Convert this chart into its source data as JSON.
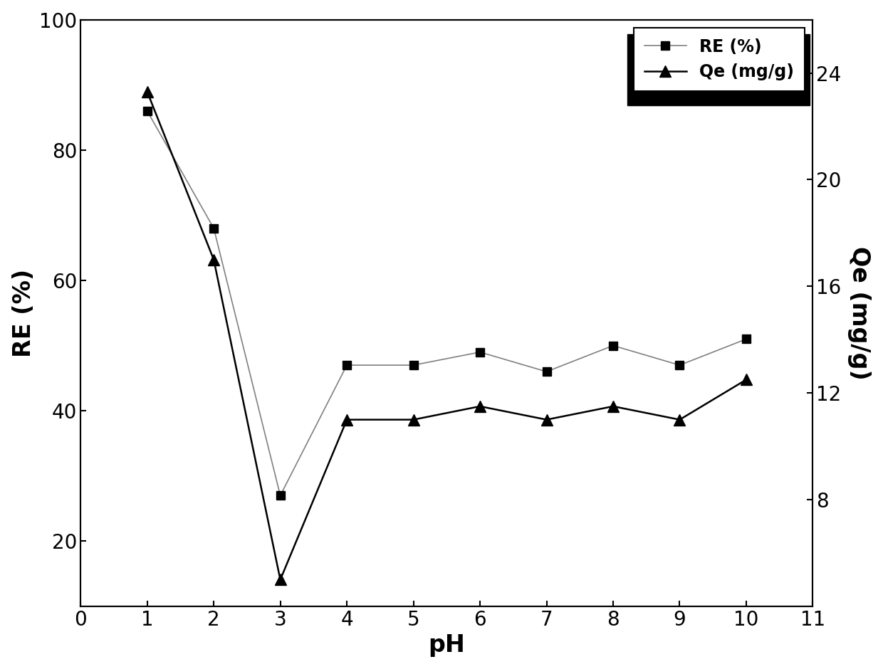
{
  "ph": [
    1,
    2,
    3,
    4,
    5,
    6,
    7,
    8,
    9,
    10
  ],
  "RE": [
    86,
    68,
    27,
    47,
    47,
    49,
    46,
    50,
    47,
    51
  ],
  "Qe": [
    23.3,
    17.0,
    5.0,
    11.0,
    11.0,
    11.5,
    11.0,
    11.5,
    11.0,
    12.5
  ],
  "RE_label": "RE (%)",
  "Qe_label": "Qe (mg/g)",
  "xlabel": "pH",
  "ylabel_left": "RE (%)",
  "ylabel_right": "Qe (mg/g)",
  "xlim": [
    0,
    11
  ],
  "ylim_left": [
    10,
    100
  ],
  "ylim_right": [
    4,
    26
  ],
  "xticks": [
    0,
    1,
    2,
    3,
    4,
    5,
    6,
    7,
    8,
    9,
    10,
    11
  ],
  "yticks_left": [
    20,
    40,
    60,
    80,
    100
  ],
  "yticks_right": [
    8,
    12,
    16,
    20,
    24
  ],
  "line_color": "#000000",
  "line_color_RE": "#808080",
  "marker_RE": "s",
  "marker_Qe": "^",
  "marker_size": 9,
  "linewidth_RE": 1.2,
  "linewidth_Qe": 1.8,
  "font_size_label": 24,
  "font_size_tick": 20,
  "font_size_legend": 17,
  "background_color": "#ffffff"
}
